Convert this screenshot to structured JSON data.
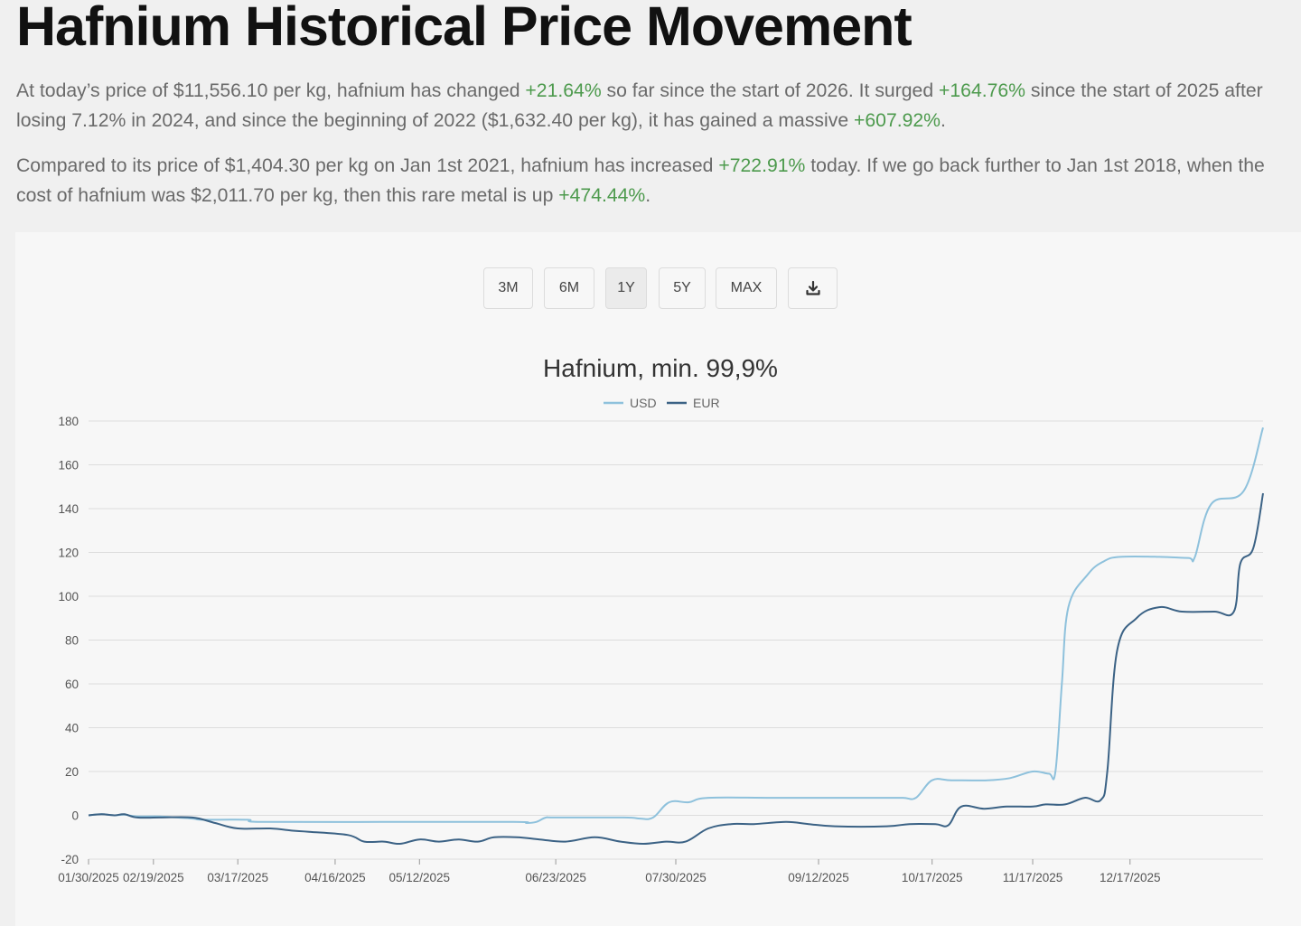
{
  "heading": "Hafnium Historical Price Movement",
  "paragraph1": [
    {
      "t": "At today’s price of $11,556.10 per kg, hafnium has changed ",
      "pos": false
    },
    {
      "t": "+21.64%",
      "pos": true
    },
    {
      "t": " so far since the start of 2026. It surged ",
      "pos": false
    },
    {
      "t": "+164.76%",
      "pos": true
    },
    {
      "t": " since the start of 2025 after losing 7.12% in 2024, and since the beginning of 2022 ($1,632.40 per kg), it has gained a massive ",
      "pos": false
    },
    {
      "t": "+607.92%",
      "pos": true
    },
    {
      "t": ".",
      "pos": false
    }
  ],
  "paragraph2": [
    {
      "t": "Compared to its price of $1,404.30 per kg on Jan 1st 2021, hafnium has increased ",
      "pos": false
    },
    {
      "t": "+722.91%",
      "pos": true
    },
    {
      "t": " today. If we go back further to Jan 1st 2018, when the cost of hafnium was $2,011.70 per kg, then this rare metal is up ",
      "pos": false
    },
    {
      "t": "+474.44%",
      "pos": true
    },
    {
      "t": ".",
      "pos": false
    }
  ],
  "range_buttons": [
    {
      "label": "3M",
      "active": false
    },
    {
      "label": "6M",
      "active": false
    },
    {
      "label": "1Y",
      "active": true
    },
    {
      "label": "5Y",
      "active": false
    },
    {
      "label": "MAX",
      "active": false
    }
  ],
  "download_icon": "download-icon",
  "colors": {
    "positive": "#4d9a4d",
    "usd": "#8ec1dc",
    "eur": "#3b6285",
    "grid": "#dddddd"
  },
  "chart_data": {
    "type": "line",
    "title": "Hafnium, min. 99,9%",
    "legend_position": "top-center",
    "ylim": [
      -20,
      180
    ],
    "y_ticks": [
      -20,
      0,
      20,
      40,
      60,
      80,
      100,
      120,
      140,
      160,
      180
    ],
    "grid": true,
    "x_range": [
      "2025-01-30",
      "2026-01-27"
    ],
    "x_tick_labels": [
      {
        "date": "2025-01-30",
        "label": "01/30/2025"
      },
      {
        "date": "2025-02-19",
        "label": "02/19/2025"
      },
      {
        "date": "2025-03-17",
        "label": "03/17/2025"
      },
      {
        "date": "2025-04-16",
        "label": "04/16/2025"
      },
      {
        "date": "2025-05-12",
        "label": "05/12/2025"
      },
      {
        "date": "2025-06-23",
        "label": "06/23/2025"
      },
      {
        "date": "2025-07-30",
        "label": "07/30/2025"
      },
      {
        "date": "2025-09-12",
        "label": "09/12/2025"
      },
      {
        "date": "2025-10-17",
        "label": "10/17/2025"
      },
      {
        "date": "2025-11-17",
        "label": "11/17/2025"
      },
      {
        "date": "2025-12-17",
        "label": "12/17/2025"
      }
    ],
    "series": [
      {
        "name": "USD",
        "color": "#8ec1dc",
        "points": [
          [
            "2025-01-30",
            0
          ],
          [
            "2025-02-03",
            0.5
          ],
          [
            "2025-02-07",
            0
          ],
          [
            "2025-02-10",
            0.3
          ],
          [
            "2025-02-14",
            -0.5
          ],
          [
            "2025-02-21",
            -0.5
          ],
          [
            "2025-03-03",
            -1.5
          ],
          [
            "2025-03-06",
            -2
          ],
          [
            "2025-03-20",
            -2
          ],
          [
            "2025-03-24",
            -3
          ],
          [
            "2025-04-30",
            -3
          ],
          [
            "2025-06-10",
            -3
          ],
          [
            "2025-06-14",
            -3.5
          ],
          [
            "2025-06-17",
            -3
          ],
          [
            "2025-06-20",
            -1
          ],
          [
            "2025-06-23",
            -1
          ],
          [
            "2025-07-14",
            -1
          ],
          [
            "2025-07-19",
            -1.5
          ],
          [
            "2025-07-23",
            -1
          ],
          [
            "2025-07-28",
            6
          ],
          [
            "2025-08-03",
            6
          ],
          [
            "2025-08-09",
            8
          ],
          [
            "2025-08-30",
            8
          ],
          [
            "2025-09-30",
            8
          ],
          [
            "2025-10-08",
            8
          ],
          [
            "2025-10-12",
            8
          ],
          [
            "2025-10-17",
            16
          ],
          [
            "2025-10-23",
            16
          ],
          [
            "2025-11-03",
            16
          ],
          [
            "2025-11-10",
            17
          ],
          [
            "2025-11-17",
            20
          ],
          [
            "2025-11-22",
            19
          ],
          [
            "2025-11-24",
            20
          ],
          [
            "2025-11-26",
            60
          ],
          [
            "2025-11-28",
            95
          ],
          [
            "2025-12-04",
            110
          ],
          [
            "2025-12-09",
            116
          ],
          [
            "2025-12-14",
            118
          ],
          [
            "2025-12-26",
            118
          ],
          [
            "2026-01-04",
            117.5
          ],
          [
            "2026-01-06",
            118
          ],
          [
            "2026-01-11",
            142
          ],
          [
            "2026-01-21",
            148
          ],
          [
            "2026-01-27",
            177
          ]
        ]
      },
      {
        "name": "EUR",
        "color": "#3b6285",
        "points": [
          [
            "2025-01-30",
            0
          ],
          [
            "2025-02-03",
            0.5
          ],
          [
            "2025-02-07",
            0
          ],
          [
            "2025-02-10",
            0.5
          ],
          [
            "2025-02-14",
            -1
          ],
          [
            "2025-02-21",
            -1
          ],
          [
            "2025-03-03",
            -1
          ],
          [
            "2025-03-10",
            -3.5
          ],
          [
            "2025-03-17",
            -6
          ],
          [
            "2025-03-27",
            -6
          ],
          [
            "2025-04-03",
            -7
          ],
          [
            "2025-04-08",
            -7.5
          ],
          [
            "2025-04-20",
            -9
          ],
          [
            "2025-04-25",
            -12
          ],
          [
            "2025-05-01",
            -12
          ],
          [
            "2025-05-06",
            -13
          ],
          [
            "2025-05-12",
            -11
          ],
          [
            "2025-05-18",
            -12
          ],
          [
            "2025-05-24",
            -11
          ],
          [
            "2025-05-30",
            -12
          ],
          [
            "2025-06-04",
            -10
          ],
          [
            "2025-06-11",
            -10
          ],
          [
            "2025-06-18",
            -11
          ],
          [
            "2025-06-26",
            -12
          ],
          [
            "2025-07-05",
            -10
          ],
          [
            "2025-07-13",
            -12
          ],
          [
            "2025-07-20",
            -13
          ],
          [
            "2025-07-27",
            -12
          ],
          [
            "2025-08-02",
            -12
          ],
          [
            "2025-08-09",
            -6
          ],
          [
            "2025-08-16",
            -4
          ],
          [
            "2025-08-23",
            -4
          ],
          [
            "2025-09-02",
            -3
          ],
          [
            "2025-09-09",
            -4
          ],
          [
            "2025-09-17",
            -5
          ],
          [
            "2025-10-03",
            -5
          ],
          [
            "2025-10-10",
            -4
          ],
          [
            "2025-10-18",
            -4
          ],
          [
            "2025-10-22",
            -4.5
          ],
          [
            "2025-10-26",
            4
          ],
          [
            "2025-11-02",
            3
          ],
          [
            "2025-11-09",
            4
          ],
          [
            "2025-11-17",
            4
          ],
          [
            "2025-11-21",
            5
          ],
          [
            "2025-11-27",
            5
          ],
          [
            "2025-12-03",
            8
          ],
          [
            "2025-12-08",
            7
          ],
          [
            "2025-12-10",
            20
          ],
          [
            "2025-12-13",
            75
          ],
          [
            "2025-12-19",
            90
          ],
          [
            "2025-12-26",
            95
          ],
          [
            "2026-01-02",
            93
          ],
          [
            "2026-01-12",
            93
          ],
          [
            "2026-01-18",
            93
          ],
          [
            "2026-01-20",
            115
          ],
          [
            "2026-01-24",
            122
          ],
          [
            "2026-01-27",
            147
          ]
        ]
      }
    ]
  }
}
